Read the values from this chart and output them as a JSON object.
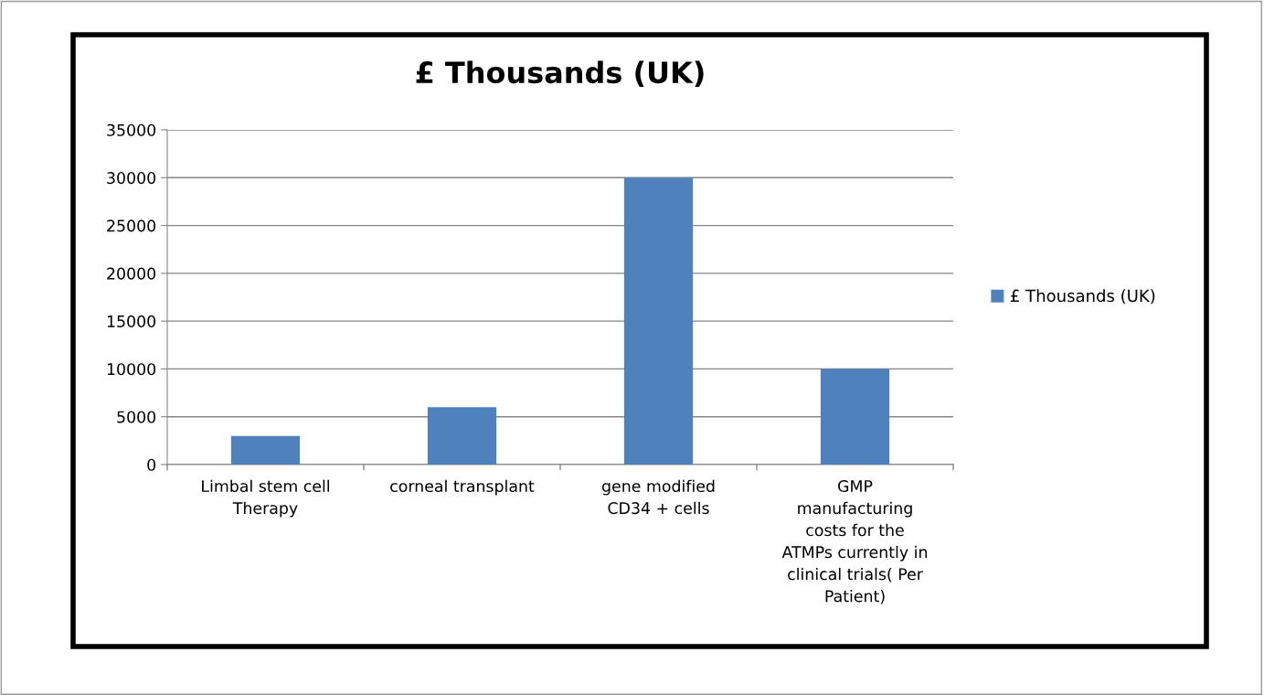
{
  "chart_data": {
    "type": "bar",
    "title": "£ Thousands (UK)",
    "categories": [
      "Limbal stem cell\nTherapy",
      "corneal transplant",
      "gene modified\nCD34 + cells",
      "GMP\nmanufacturing\ncosts for the\nATMPs currently in\nclinical trials( Per\nPatient)"
    ],
    "series": [
      {
        "name": "£ Thousands (UK)",
        "color": "#4f81bd",
        "values": [
          3000,
          6000,
          30000,
          10000
        ]
      }
    ],
    "ylim": [
      0,
      35000
    ],
    "yticks": [
      0,
      5000,
      10000,
      15000,
      20000,
      25000,
      30000,
      35000
    ],
    "grid": "y",
    "legend": "right"
  }
}
